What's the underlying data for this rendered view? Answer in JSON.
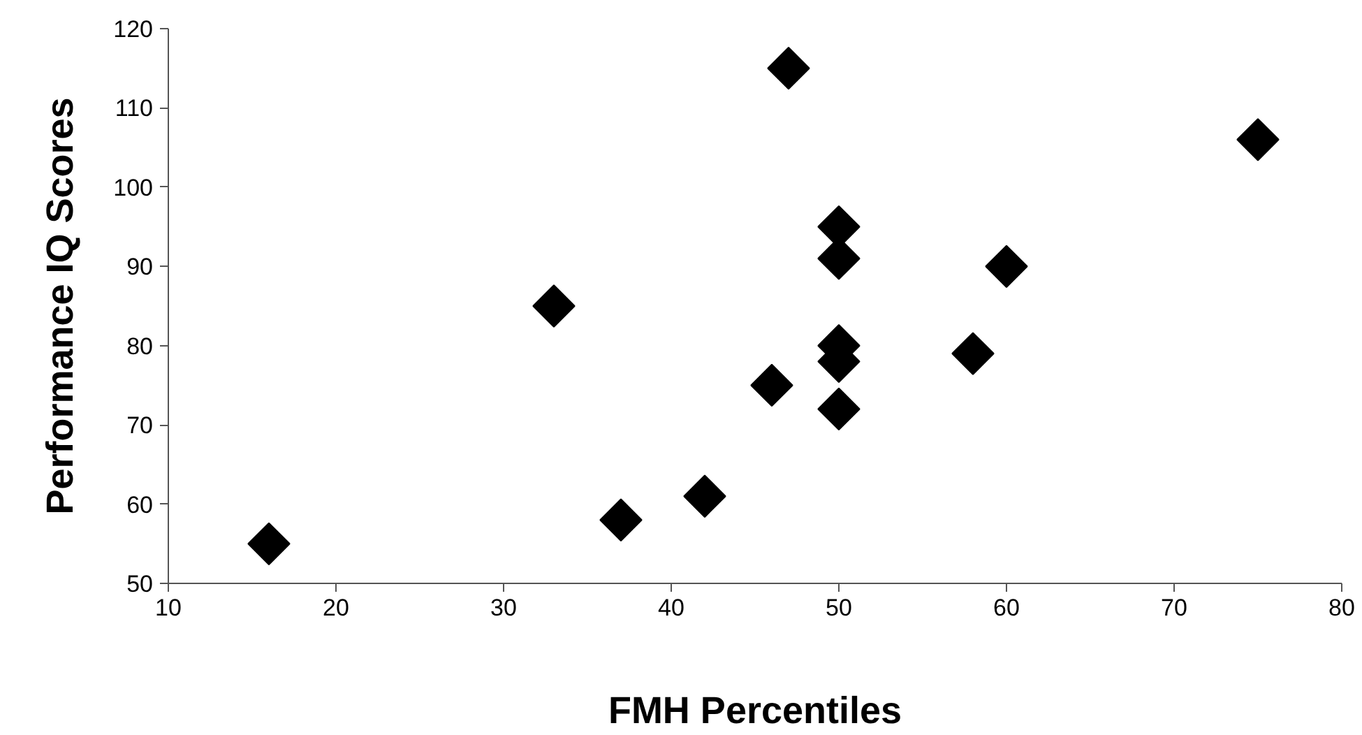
{
  "chart_data": {
    "type": "scatter",
    "xlabel": "FMH Percentiles",
    "ylabel": "Performance IQ Scores",
    "x": [
      16,
      33,
      37,
      42,
      46,
      47,
      50,
      50,
      50,
      50,
      50,
      58,
      60,
      75
    ],
    "series": [
      {
        "color": "#000000",
        "values": [
          55,
          85,
          58,
          61,
          75,
          115,
          95,
          91,
          80,
          78,
          72,
          79,
          90,
          106
        ]
      }
    ],
    "xlim": [
      10,
      80
    ],
    "xticks": [
      10,
      20,
      30,
      40,
      50,
      60,
      70,
      80
    ],
    "ylim": [
      50,
      120
    ],
    "yticks": [
      50,
      60,
      70,
      80,
      90,
      100,
      110,
      120
    ],
    "marker": "diamond",
    "grid": false
  }
}
